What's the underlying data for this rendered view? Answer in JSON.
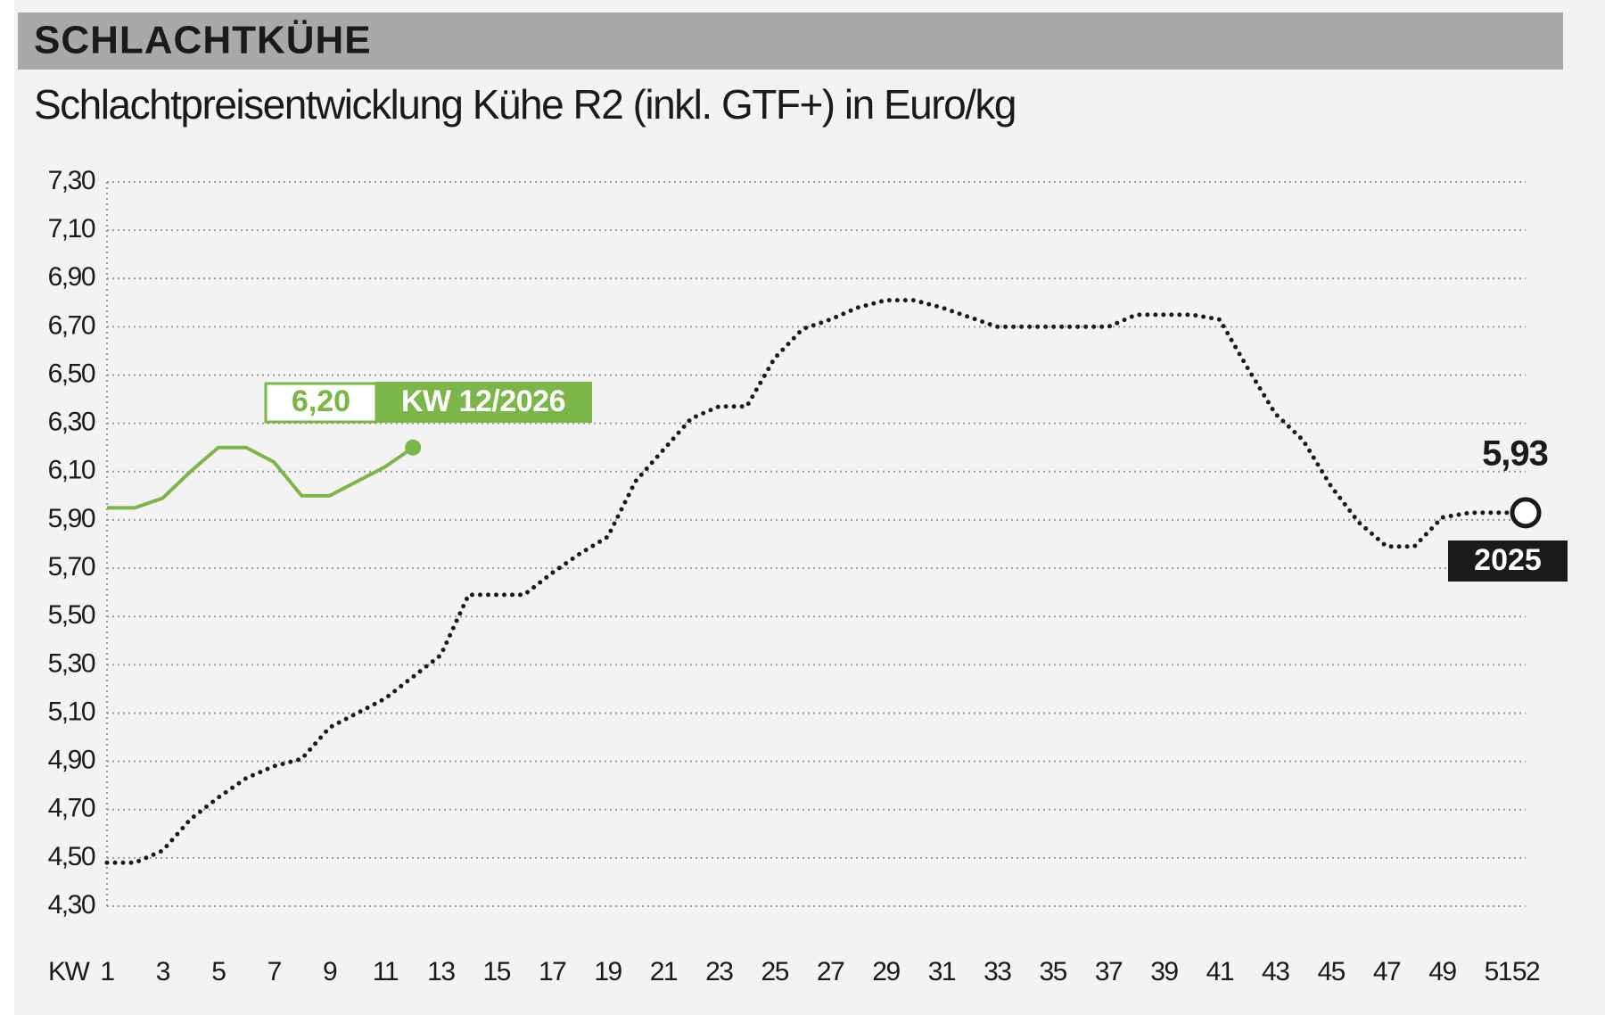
{
  "chart_data": {
    "type": "line",
    "header": "SCHLACHTKÜHE",
    "title": "Schlachtpreisentwicklung Kühe R2 (inkl. GTF+) in Euro/kg",
    "x_label": "KW",
    "xlim": [
      1,
      52
    ],
    "xticks": [
      1,
      3,
      5,
      7,
      9,
      11,
      13,
      15,
      17,
      19,
      21,
      23,
      25,
      27,
      29,
      31,
      33,
      35,
      37,
      39,
      41,
      43,
      45,
      47,
      49,
      51,
      52
    ],
    "ylim": [
      4.3,
      7.3
    ],
    "yticks": [
      {
        "value": 4.3,
        "label": "4,30"
      },
      {
        "value": 4.5,
        "label": "4,50"
      },
      {
        "value": 4.7,
        "label": "4,70"
      },
      {
        "value": 4.9,
        "label": "4,90"
      },
      {
        "value": 5.1,
        "label": "5,10"
      },
      {
        "value": 5.3,
        "label": "5,30"
      },
      {
        "value": 5.5,
        "label": "5,50"
      },
      {
        "value": 5.7,
        "label": "5,70"
      },
      {
        "value": 5.9,
        "label": "5,90"
      },
      {
        "value": 6.1,
        "label": "6,10"
      },
      {
        "value": 6.3,
        "label": "6,30"
      },
      {
        "value": 6.5,
        "label": "6,50"
      },
      {
        "value": 6.7,
        "label": "6,70"
      },
      {
        "value": 6.9,
        "label": "6,90"
      },
      {
        "value": 7.1,
        "label": "7,10"
      },
      {
        "value": 7.3,
        "label": "7,30"
      }
    ],
    "grid": true,
    "series": [
      {
        "name": "2025",
        "color": "#1a1a1a",
        "style": "dotted",
        "x": [
          1,
          2,
          3,
          4,
          5,
          6,
          7,
          8,
          9,
          10,
          11,
          12,
          13,
          14,
          15,
          16,
          17,
          18,
          19,
          20,
          21,
          22,
          23,
          24,
          25,
          26,
          27,
          28,
          29,
          30,
          31,
          32,
          33,
          34,
          35,
          36,
          37,
          38,
          39,
          40,
          41,
          42,
          43,
          44,
          45,
          46,
          47,
          48,
          49,
          50,
          51,
          52
        ],
        "values": [
          4.48,
          4.48,
          4.53,
          4.66,
          4.75,
          4.83,
          4.88,
          4.91,
          5.04,
          5.1,
          5.16,
          5.25,
          5.34,
          5.59,
          5.59,
          5.59,
          5.68,
          5.76,
          5.83,
          6.06,
          6.19,
          6.32,
          6.37,
          6.37,
          6.57,
          6.69,
          6.73,
          6.78,
          6.81,
          6.81,
          6.78,
          6.74,
          6.7,
          6.7,
          6.7,
          6.7,
          6.7,
          6.75,
          6.75,
          6.75,
          6.73,
          6.53,
          6.34,
          6.23,
          6.04,
          5.89,
          5.79,
          5.79,
          5.91,
          5.93,
          5.93,
          5.93
        ],
        "value_labels": [
          null,
          null,
          null,
          null,
          null,
          null,
          null,
          null,
          null,
          null,
          null,
          null,
          null,
          null,
          null,
          null,
          null,
          null,
          null,
          null,
          null,
          null,
          null,
          null,
          null,
          null,
          null,
          null,
          null,
          null,
          null,
          null,
          null,
          null,
          null,
          null,
          null,
          null,
          null,
          null,
          null,
          null,
          null,
          null,
          null,
          null,
          null,
          null,
          null,
          null,
          null,
          "5,93"
        ]
      },
      {
        "color": "#7ab648",
        "style": "solid",
        "x": [
          1,
          2,
          3,
          4,
          5,
          6,
          7,
          8,
          9,
          10,
          11,
          12
        ],
        "values": [
          5.95,
          5.95,
          5.99,
          6.1,
          6.2,
          6.2,
          6.14,
          6.0,
          6.0,
          6.06,
          6.12,
          6.2
        ],
        "value_labels": [
          null,
          null,
          null,
          null,
          null,
          null,
          null,
          null,
          null,
          null,
          null,
          "6,20"
        ]
      }
    ],
    "annotations": [
      {
        "text": "KW 12/2026"
      }
    ]
  }
}
